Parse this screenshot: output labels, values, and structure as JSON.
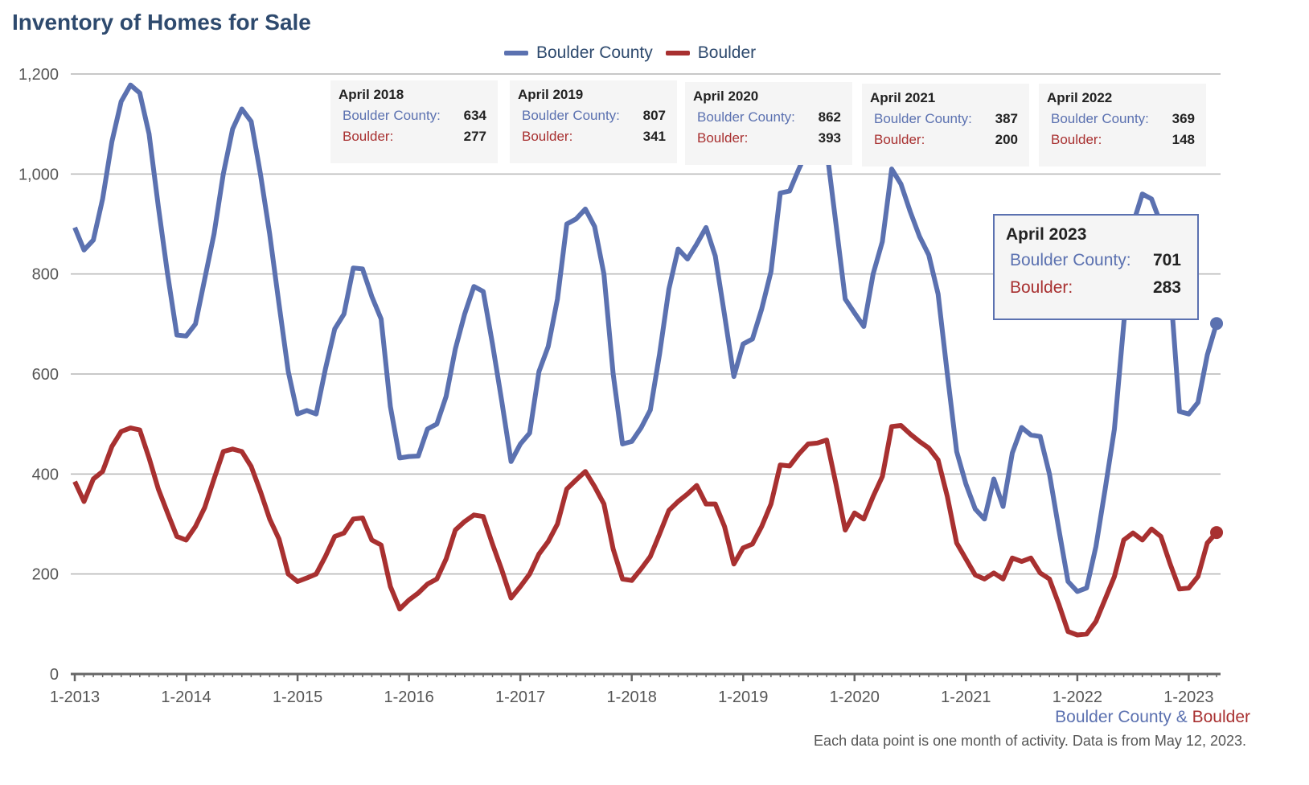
{
  "colors": {
    "county": "#5b71b0",
    "boulder": "#a83030",
    "grid": "#b5b5b5",
    "axis": "#666666"
  },
  "chart_data": {
    "type": "line",
    "title": "Inventory of Homes for Sale",
    "xlabel": "",
    "ylabel": "",
    "ylim": [
      0,
      1200
    ],
    "y_ticks": [
      "0",
      "200",
      "400",
      "600",
      "800",
      "1,000",
      "1,200"
    ],
    "x_ticks": [
      "1-2013",
      "1-2014",
      "1-2015",
      "1-2016",
      "1-2017",
      "1-2018",
      "1-2019",
      "1-2020",
      "1-2021",
      "1-2022",
      "1-2023"
    ],
    "x_start": "1-2013",
    "x_end": "4-2023",
    "legend_position": "top-center",
    "grid": true,
    "series": [
      {
        "name": "Boulder County",
        "values": [
          893,
          848,
          868,
          950,
          1065,
          1145,
          1178,
          1162,
          1080,
          935,
          800,
          678,
          676,
          700,
          790,
          880,
          1000,
          1090,
          1130,
          1105,
          1000,
          880,
          740,
          605,
          520,
          527,
          520,
          610,
          690,
          720,
          812,
          810,
          755,
          710,
          535,
          432,
          435,
          436,
          490,
          500,
          555,
          650,
          720,
          775,
          765,
          660,
          545,
          425,
          460,
          482,
          605,
          655,
          750,
          900,
          910,
          930,
          895,
          800,
          600,
          460,
          465,
          492,
          528,
          640,
          770,
          850,
          830,
          860,
          893,
          836,
          718,
          595,
          660,
          670,
          730,
          805,
          962,
          966,
          1010,
          1050,
          1070,
          1050,
          900,
          750,
          722,
          695,
          800,
          865,
          1010,
          980,
          925,
          875,
          838,
          760,
          600,
          445,
          380,
          330,
          310,
          390,
          335,
          442,
          493,
          478,
          475,
          400,
          290,
          185,
          165,
          172,
          255,
          370,
          490,
          700,
          900,
          960,
          950,
          900,
          780,
          525,
          520,
          543,
          638,
          701
        ]
      },
      {
        "name": "Boulder",
        "values": [
          385,
          345,
          390,
          405,
          455,
          485,
          492,
          488,
          432,
          370,
          322,
          275,
          268,
          295,
          333,
          390,
          445,
          450,
          445,
          415,
          365,
          310,
          270,
          200,
          185,
          192,
          200,
          235,
          275,
          282,
          310,
          312,
          268,
          258,
          175,
          130,
          148,
          162,
          180,
          190,
          230,
          288,
          305,
          318,
          315,
          260,
          208,
          152,
          175,
          200,
          240,
          265,
          300,
          370,
          388,
          405,
          375,
          340,
          250,
          190,
          187,
          210,
          235,
          280,
          327,
          345,
          360,
          377,
          340,
          340,
          295,
          220,
          252,
          260,
          295,
          340,
          418,
          416,
          440,
          460,
          462,
          468,
          380,
          288,
          322,
          310,
          355,
          395,
          495,
          497,
          480,
          465,
          452,
          428,
          355,
          262,
          230,
          198,
          190,
          202,
          190,
          232,
          225,
          232,
          202,
          190,
          140,
          85,
          78,
          80,
          105,
          150,
          195,
          268,
          282,
          268,
          290,
          275,
          220,
          170,
          172,
          195,
          262,
          283
        ]
      }
    ],
    "annotations": [
      {
        "title": "April 2018",
        "county_label": "Boulder County:",
        "county": "634",
        "boulder_label": "Boulder:",
        "boulder": "277"
      },
      {
        "title": "April 2019",
        "county_label": "Boulder County:",
        "county": "807",
        "boulder_label": "Boulder:",
        "boulder": "341"
      },
      {
        "title": "April 2020",
        "county_label": "Boulder County:",
        "county": "862",
        "boulder_label": "Boulder:",
        "boulder": "393"
      },
      {
        "title": "April 2021",
        "county_label": "Boulder County:",
        "county": "387",
        "boulder_label": "Boulder:",
        "boulder": "200"
      },
      {
        "title": "April 2022",
        "county_label": "Boulder County:",
        "county": "369",
        "boulder_label": "Boulder:",
        "boulder": "148"
      }
    ],
    "tooltip": {
      "title": "April 2023",
      "county_label": "Boulder County:",
      "county": "701",
      "boulder_label": "Boulder:",
      "boulder": "283"
    }
  },
  "footer": {
    "county": "Boulder County",
    "amp": " & ",
    "boulder": "Boulder",
    "note": "Each data point is one month of activity. Data is from May 12, 2023."
  }
}
